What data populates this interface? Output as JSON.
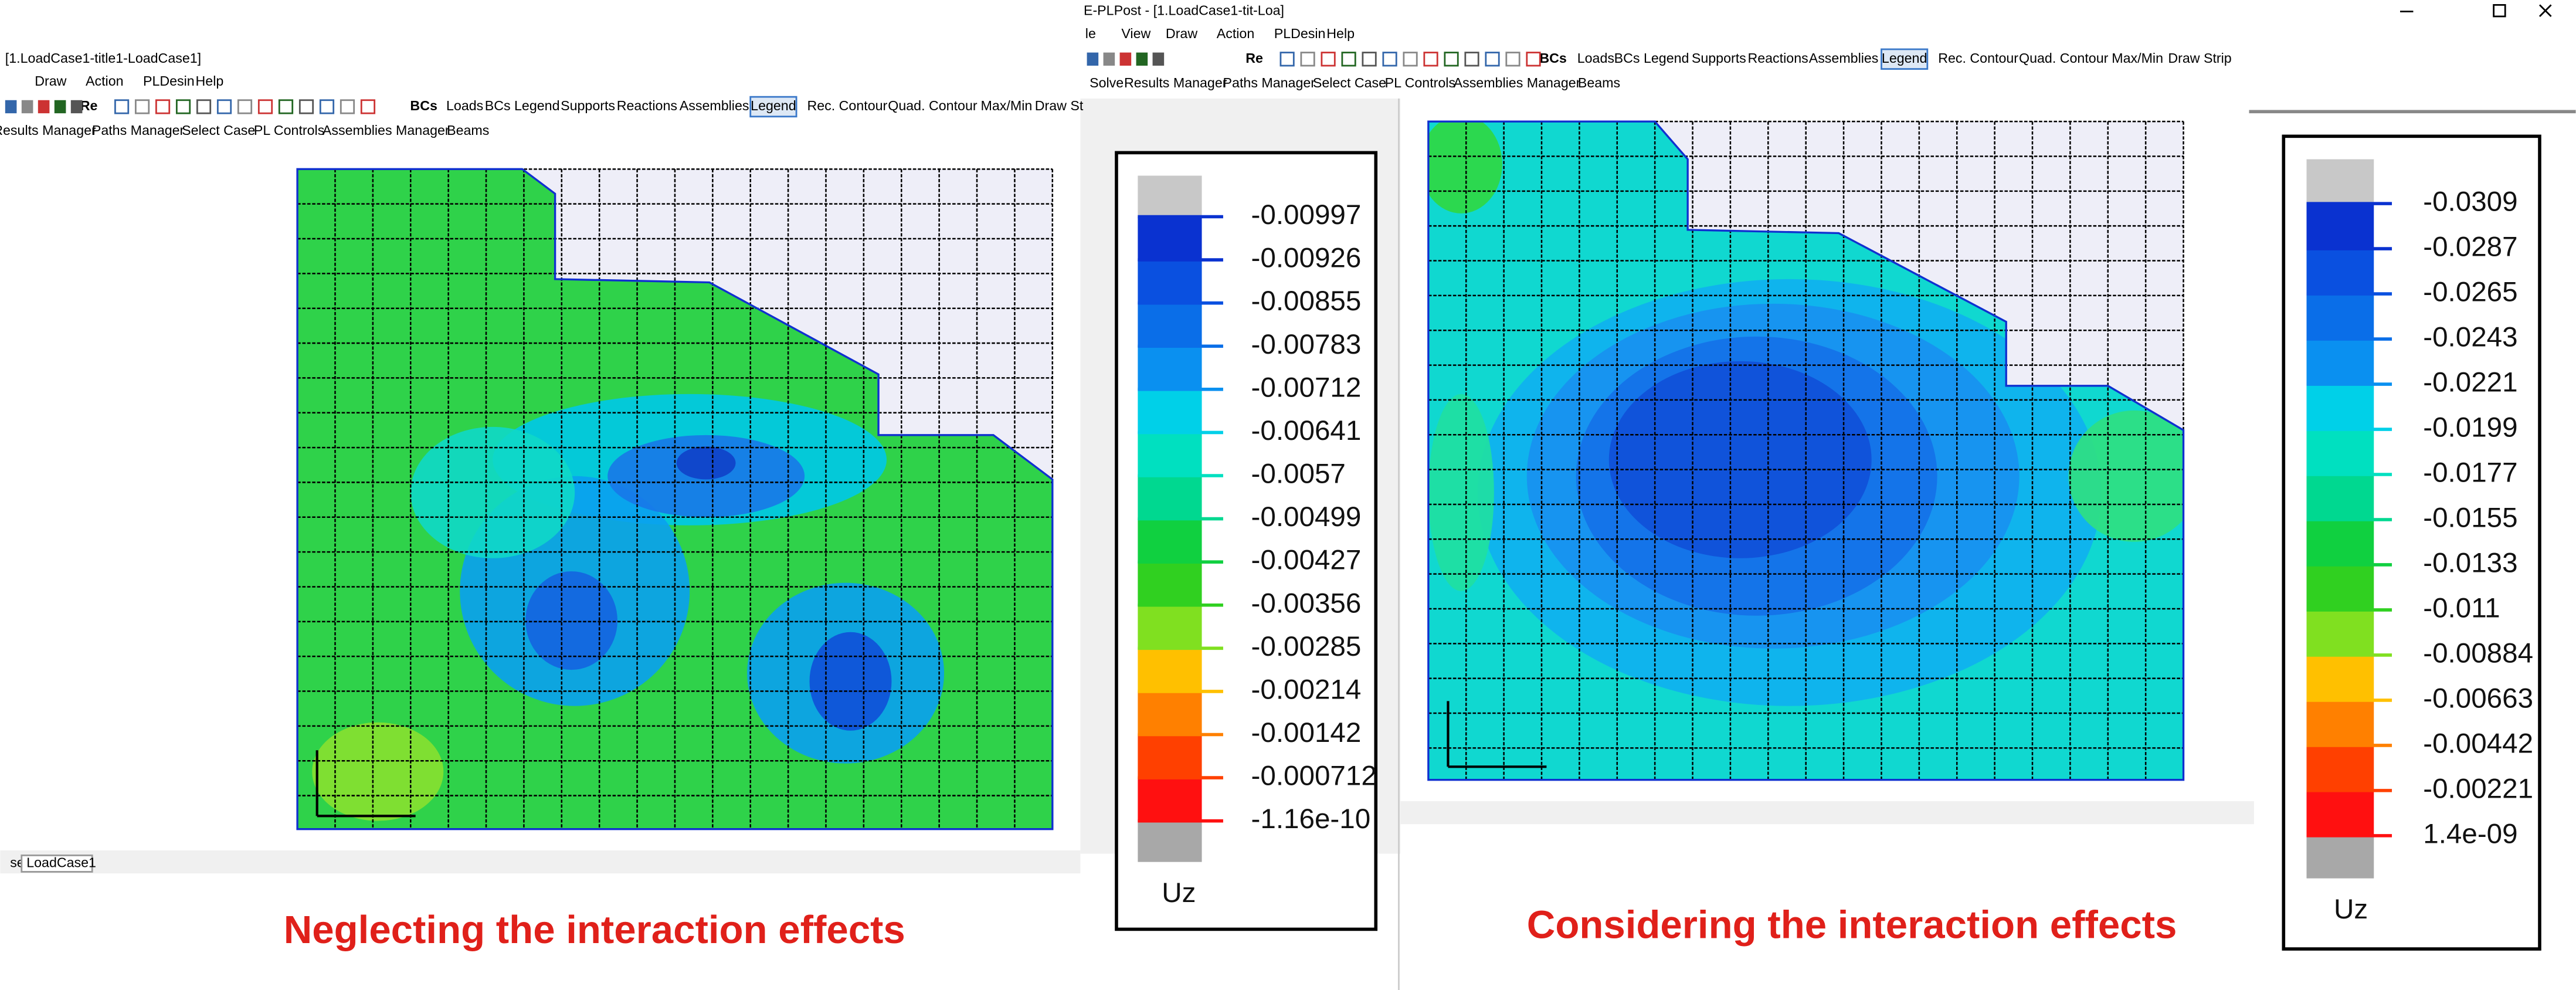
{
  "left": {
    "window_title": "[1.LoadCase1-title1-LoadCase1]",
    "menu": [
      "Draw",
      "Action",
      "PLDesin",
      "Help"
    ],
    "toolbar": [
      "Re",
      "BCs",
      "Loads",
      "BCs Legend",
      "Supports",
      "Reactions",
      "Assemblies",
      "Legend",
      "Rec. Contour",
      "Quad. Contour",
      "Max/Min",
      "Draw St"
    ],
    "toolbar2": [
      "Results Manager",
      "Paths Manager",
      "Select Case",
      "PL Controls",
      "Assemblies Manager",
      "Beams"
    ],
    "status_label": "se:",
    "status_case": "LoadCase1",
    "legend": {
      "values": [
        "-0.00997",
        "-0.00926",
        "-0.00855",
        "-0.00783",
        "-0.00712",
        "-0.00641",
        "-0.0057",
        "-0.00499",
        "-0.00427",
        "-0.00356",
        "-0.00285",
        "-0.00214",
        "-0.00142",
        "-0.000712",
        "-1.16e-10"
      ],
      "label": "Uz"
    },
    "caption": "Neglecting the interaction effects"
  },
  "right": {
    "window_title": "E-PLPost - [1.LoadCase1-tit-Loa]",
    "menu": [
      "le",
      "View",
      "Draw",
      "Action",
      "PLDesin",
      "Help"
    ],
    "toolbar": [
      "Re",
      "BCs",
      "Loads",
      "BCs Legend",
      "Supports",
      "Reactions",
      "Assemblies",
      "Legend",
      "Rec. Contour",
      "Quad. Contour",
      "Max/Min",
      "Draw Strip"
    ],
    "toolbar2": [
      "Solve",
      "Results Manager",
      "Paths Manager",
      "Select Case",
      "PL Controls",
      "Assemblies Manager",
      "Beams"
    ],
    "legend": {
      "values": [
        "-0.0309",
        "-0.0287",
        "-0.0265",
        "-0.0243",
        "-0.0221",
        "-0.0199",
        "-0.0177",
        "-0.0155",
        "-0.0133",
        "-0.011",
        "-0.00884",
        "-0.00663",
        "-0.00442",
        "-0.00221",
        "1.4e-09"
      ],
      "label": "Uz"
    },
    "caption": "Considering the interaction effects"
  }
}
